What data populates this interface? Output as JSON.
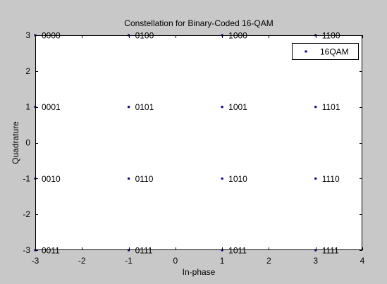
{
  "chart_data": {
    "type": "scatter",
    "title": "Constellation for Binary-Coded 16-QAM",
    "xlabel": "In-phase",
    "ylabel": "Quadrature",
    "xlim": [
      -3,
      4
    ],
    "ylim": [
      -3,
      3
    ],
    "xticks": [
      "-3",
      "-2",
      "-1",
      "0",
      "1",
      "2",
      "3",
      "4"
    ],
    "yticks": [
      "-3",
      "-2",
      "-1",
      "0",
      "1",
      "2",
      "3"
    ],
    "grid": false,
    "legend": {
      "position": "top-right",
      "entries": [
        "16QAM"
      ]
    },
    "series": [
      {
        "name": "16QAM",
        "color": "#00007f",
        "marker": "point",
        "points": [
          {
            "x": -3,
            "y": 3,
            "label": "0000"
          },
          {
            "x": -3,
            "y": 1,
            "label": "0001"
          },
          {
            "x": -3,
            "y": -1,
            "label": "0010"
          },
          {
            "x": -3,
            "y": -3,
            "label": "0011"
          },
          {
            "x": -1,
            "y": 3,
            "label": "0100"
          },
          {
            "x": -1,
            "y": 1,
            "label": "0101"
          },
          {
            "x": -1,
            "y": -1,
            "label": "0110"
          },
          {
            "x": -1,
            "y": -3,
            "label": "0111"
          },
          {
            "x": 1,
            "y": 3,
            "label": "1000"
          },
          {
            "x": 1,
            "y": 1,
            "label": "1001"
          },
          {
            "x": 1,
            "y": -1,
            "label": "1010"
          },
          {
            "x": 1,
            "y": -3,
            "label": "1011"
          },
          {
            "x": 3,
            "y": 3,
            "label": "1100"
          },
          {
            "x": 3,
            "y": 1,
            "label": "1101"
          },
          {
            "x": 3,
            "y": -1,
            "label": "1110"
          },
          {
            "x": 3,
            "y": -3,
            "label": "1111"
          }
        ]
      }
    ]
  },
  "colors": {
    "figure_background": "#c8c8c8",
    "axes_background": "#ffffff",
    "axis_color": "#000000",
    "marker_color": "#00007f"
  }
}
